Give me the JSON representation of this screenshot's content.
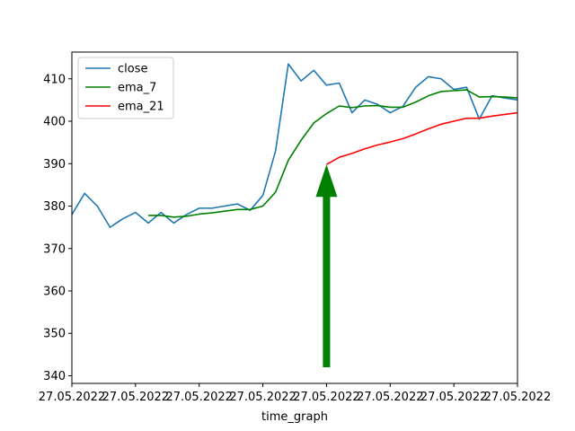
{
  "chart_data": {
    "type": "line",
    "title": "",
    "xlabel": "time_graph",
    "ylabel": "",
    "xlim": [
      0,
      35
    ],
    "ylim": [
      338.2,
      416.3
    ],
    "x_ticks": [
      0,
      5,
      10,
      15,
      20,
      25,
      30,
      35
    ],
    "x_tick_labels": [
      "27.05.2022",
      "27.05.2022",
      "27.05.2022",
      "27.05.2022",
      "27.05.2022",
      "27.05.2022",
      "27.05.2022",
      "27.05.2022"
    ],
    "y_ticks": [
      340,
      350,
      360,
      370,
      380,
      390,
      400,
      410
    ],
    "y_tick_labels": [
      "340",
      "350",
      "360",
      "370",
      "380",
      "390",
      "400",
      "410"
    ],
    "legend_position": "upper-left",
    "series": [
      {
        "name": "close",
        "color": "#1f77b4",
        "x": [
          0,
          1,
          2,
          3,
          4,
          5,
          6,
          7,
          8,
          9,
          10,
          11,
          12,
          13,
          14,
          15,
          16,
          17,
          18,
          19,
          20,
          21,
          22,
          23,
          24,
          25,
          26,
          27,
          28,
          29,
          30,
          31,
          32,
          33,
          34,
          35
        ],
        "values": [
          378.0,
          383.0,
          380.0,
          375.0,
          377.0,
          378.5,
          376.0,
          378.5,
          376.0,
          378.0,
          379.5,
          379.5,
          380.0,
          380.5,
          379.0,
          382.5,
          393.0,
          413.5,
          409.5,
          412.0,
          408.5,
          409.0,
          402.0,
          405.0,
          404.0,
          402.0,
          403.5,
          408.0,
          410.5,
          410.0,
          407.5,
          408.0,
          400.5,
          406.0,
          405.5,
          405.0
        ]
      },
      {
        "name": "ema_7",
        "color": "#008000",
        "x": [
          6,
          7,
          8,
          9,
          10,
          11,
          12,
          13,
          14,
          15,
          16,
          17,
          18,
          19,
          20,
          21,
          22,
          23,
          24,
          25,
          26,
          27,
          28,
          29,
          30,
          31,
          32,
          33,
          34,
          35
        ],
        "values": [
          377.8,
          377.8,
          377.4,
          377.6,
          378.1,
          378.4,
          378.8,
          379.2,
          379.2,
          380.0,
          383.3,
          390.8,
          395.5,
          399.6,
          401.8,
          403.6,
          403.2,
          403.6,
          403.7,
          403.3,
          403.3,
          404.5,
          406.0,
          407.0,
          407.2,
          407.4,
          405.7,
          405.8,
          405.7,
          405.5
        ]
      },
      {
        "name": "ema_21",
        "color": "#ff0000",
        "x": [
          20,
          21,
          22,
          23,
          24,
          25,
          26,
          27,
          28,
          29,
          30,
          31,
          32,
          33,
          34,
          35
        ],
        "values": [
          389.8,
          391.5,
          392.4,
          393.5,
          394.4,
          395.1,
          395.9,
          397.0,
          398.2,
          399.3,
          400.0,
          400.7,
          400.7,
          401.2,
          401.6,
          402.0
        ]
      }
    ],
    "annotations": [
      {
        "type": "arrow",
        "color": "#008000",
        "x": 20,
        "y_start": 342,
        "y_end": 389.8
      }
    ]
  }
}
